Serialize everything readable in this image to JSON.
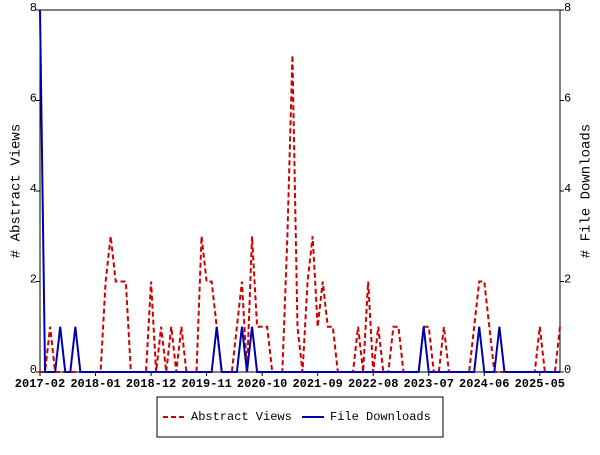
{
  "chart_data": {
    "type": "line",
    "x": [
      "2017-02",
      "2017-03",
      "2017-04",
      "2017-05",
      "2017-06",
      "2017-07",
      "2017-08",
      "2017-09",
      "2017-10",
      "2017-11",
      "2017-12",
      "2018-01",
      "2018-02",
      "2018-03",
      "2018-04",
      "2018-05",
      "2018-06",
      "2018-07",
      "2018-08",
      "2018-09",
      "2018-10",
      "2018-11",
      "2018-12",
      "2019-01",
      "2019-02",
      "2019-03",
      "2019-04",
      "2019-05",
      "2019-06",
      "2019-07",
      "2019-08",
      "2019-09",
      "2019-10",
      "2019-11",
      "2019-12",
      "2020-01",
      "2020-02",
      "2020-03",
      "2020-04",
      "2020-05",
      "2020-06",
      "2020-07",
      "2020-08",
      "2020-09",
      "2020-10",
      "2020-11",
      "2020-12",
      "2021-01",
      "2021-02",
      "2021-03",
      "2021-04",
      "2021-05",
      "2021-06",
      "2021-07",
      "2021-08",
      "2021-09",
      "2021-10",
      "2021-11",
      "2021-12",
      "2022-01",
      "2022-02",
      "2022-03",
      "2022-04",
      "2022-05",
      "2022-06",
      "2022-07",
      "2022-08",
      "2022-09",
      "2022-10",
      "2022-11",
      "2022-12",
      "2023-01",
      "2023-02",
      "2023-03",
      "2023-04",
      "2023-05",
      "2023-06",
      "2023-07",
      "2023-08",
      "2023-09",
      "2023-10",
      "2023-11",
      "2023-12",
      "2024-01",
      "2024-02",
      "2024-03",
      "2024-04",
      "2024-05",
      "2024-06",
      "2024-07",
      "2024-08",
      "2024-09",
      "2024-10",
      "2024-11",
      "2024-12",
      "2025-01",
      "2025-02",
      "2025-03",
      "2025-04",
      "2025-05",
      "2025-06",
      "2025-07",
      "2025-08",
      "2025-09"
    ],
    "series": [
      {
        "name": "Abstract Views",
        "color": "#cc0000",
        "dash": true,
        "values": [
          0,
          0,
          1,
          0,
          0,
          0,
          0,
          0,
          0,
          0,
          0,
          0,
          0,
          2,
          3,
          2,
          2,
          2,
          0,
          0,
          0,
          0,
          2,
          0,
          1,
          0,
          1,
          0,
          1,
          0,
          0,
          0,
          3,
          2,
          2,
          1,
          0,
          0,
          0,
          1,
          2,
          0,
          3,
          1,
          1,
          1,
          0,
          0,
          0,
          3,
          7,
          1,
          0,
          2,
          3,
          1,
          2,
          1,
          1,
          0,
          0,
          0,
          0,
          1,
          0,
          2,
          0,
          1,
          0,
          0,
          1,
          1,
          0,
          0,
          0,
          0,
          1,
          1,
          0,
          0,
          1,
          0,
          0,
          0,
          0,
          0,
          1,
          2,
          2,
          1,
          0,
          0,
          0,
          0,
          0,
          0,
          0,
          0,
          0,
          1,
          0,
          0,
          0,
          1
        ]
      },
      {
        "name": "File Downloads",
        "color": "#0000aa",
        "dash": false,
        "axis": "y2",
        "values": [
          8,
          0,
          0,
          0,
          1,
          0,
          0,
          1,
          0,
          0,
          0,
          0,
          0,
          0,
          0,
          0,
          0,
          0,
          0,
          0,
          0,
          0,
          0,
          0,
          0,
          0,
          0,
          0,
          0,
          0,
          0,
          0,
          0,
          0,
          0,
          1,
          0,
          0,
          0,
          0,
          1,
          0,
          1,
          0,
          0,
          0,
          0,
          0,
          0,
          0,
          0,
          0,
          0,
          0,
          0,
          0,
          0,
          0,
          0,
          0,
          0,
          0,
          0,
          0,
          0,
          0,
          0,
          0,
          0,
          0,
          0,
          0,
          0,
          0,
          0,
          0,
          1,
          0,
          0,
          0,
          0,
          0,
          0,
          0,
          0,
          0,
          0,
          1,
          0,
          0,
          0,
          1,
          0,
          0,
          0,
          0,
          0,
          0,
          0,
          0,
          0,
          0,
          0,
          0
        ]
      }
    ],
    "ylabel": "# Abstract Views",
    "y2label": "# File Downloads",
    "ylim": [
      0,
      8
    ],
    "yticks": [
      0,
      2,
      4,
      6,
      8
    ],
    "y2lim": [
      0,
      8
    ],
    "y2ticks": [
      0,
      2,
      4,
      6,
      8
    ]
  }
}
